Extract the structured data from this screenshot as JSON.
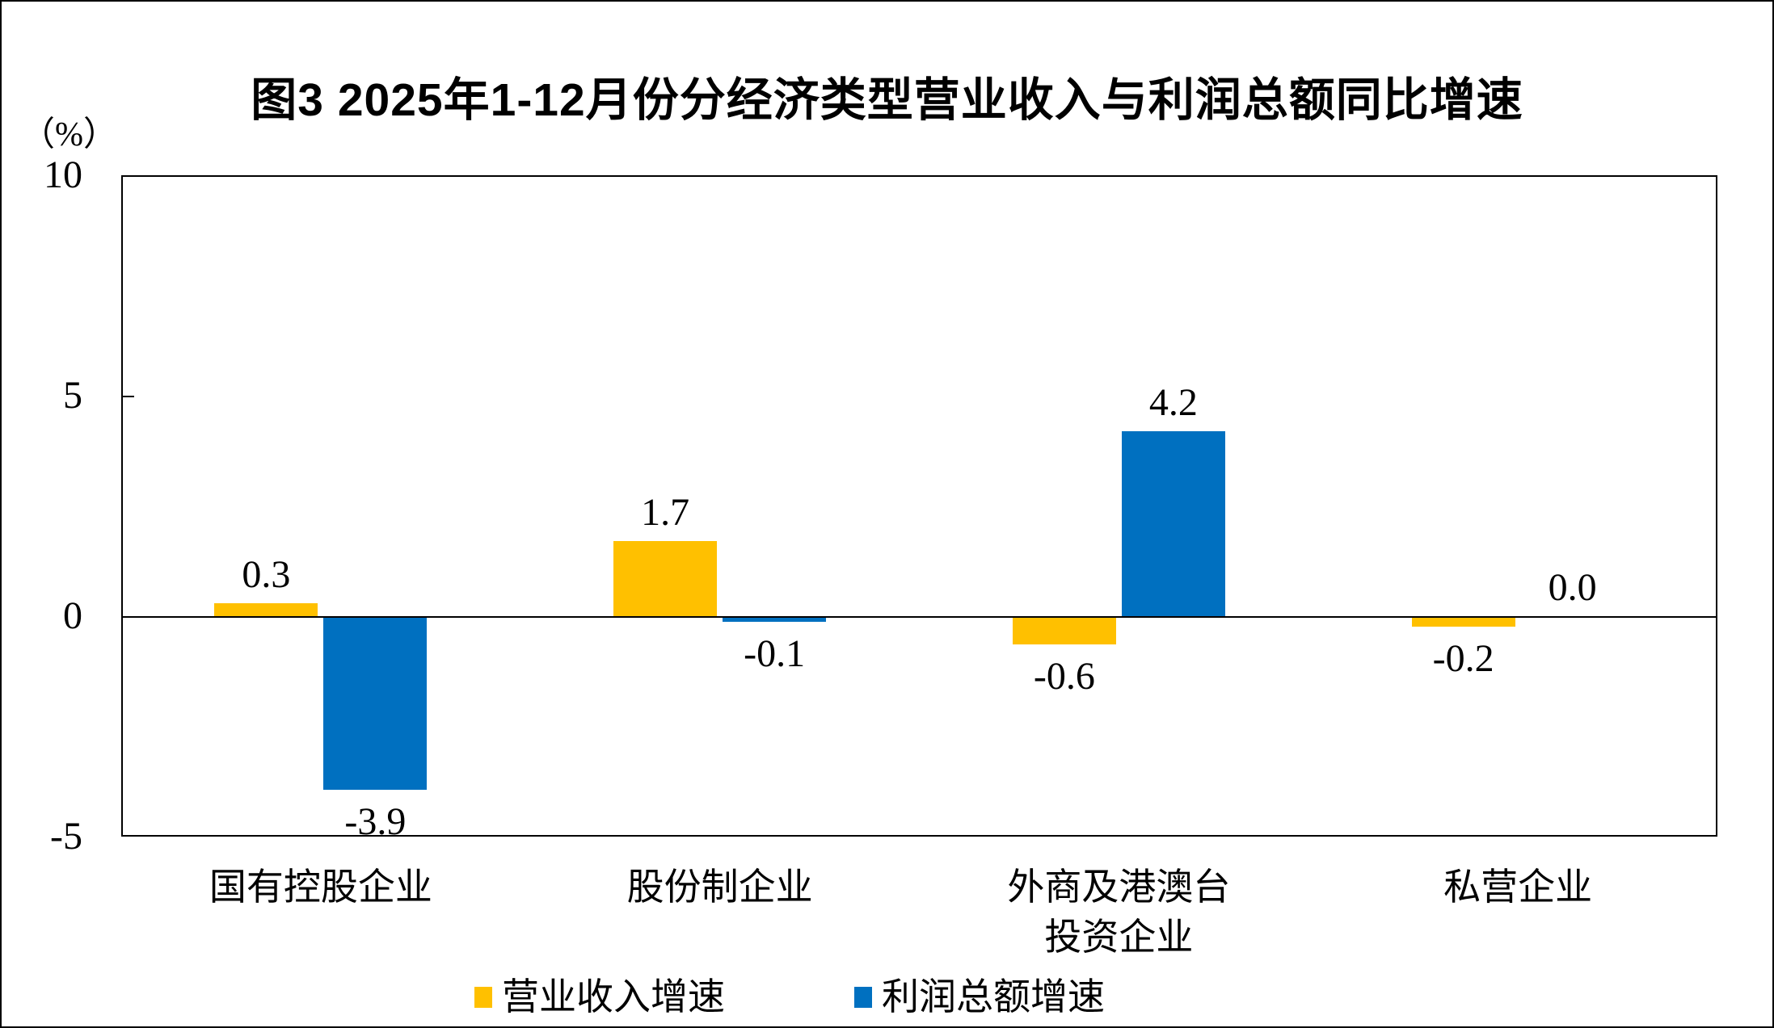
{
  "chart_data": {
    "type": "bar",
    "title": "图3 2025年1-12月份分经济类型营业收入与利润总额同比增速",
    "unit_label": "（%）",
    "categories": [
      "国有控股企业",
      "股份制企业",
      "外商及港澳台投资企业",
      "私营企业"
    ],
    "category_lines": [
      [
        "国有控股企业"
      ],
      [
        "股份制企业"
      ],
      [
        "外商及港澳台",
        "投资企业"
      ],
      [
        "私营企业"
      ]
    ],
    "series": [
      {
        "name": "营业收入增速",
        "color": "#FFC000",
        "values": [
          0.3,
          1.7,
          -0.6,
          -0.2
        ]
      },
      {
        "name": "利润总额增速",
        "color": "#0070C0",
        "values": [
          -3.9,
          -0.1,
          4.2,
          0.0
        ]
      }
    ],
    "data_labels": [
      [
        "0.3",
        "1.7",
        "-0.6",
        "-0.2"
      ],
      [
        "-3.9",
        "-0.1",
        "4.2",
        "0.0"
      ]
    ],
    "yticks": [
      {
        "label": "10",
        "value": 10
      },
      {
        "label": "5",
        "value": 5
      },
      {
        "label": "0",
        "value": 0
      },
      {
        "label": "-5",
        "value": -5
      }
    ],
    "ylim": [
      -5,
      10
    ],
    "grid": false,
    "legend_position": "bottom",
    "axis_color": "#000000",
    "background": "#FFFFFF"
  }
}
